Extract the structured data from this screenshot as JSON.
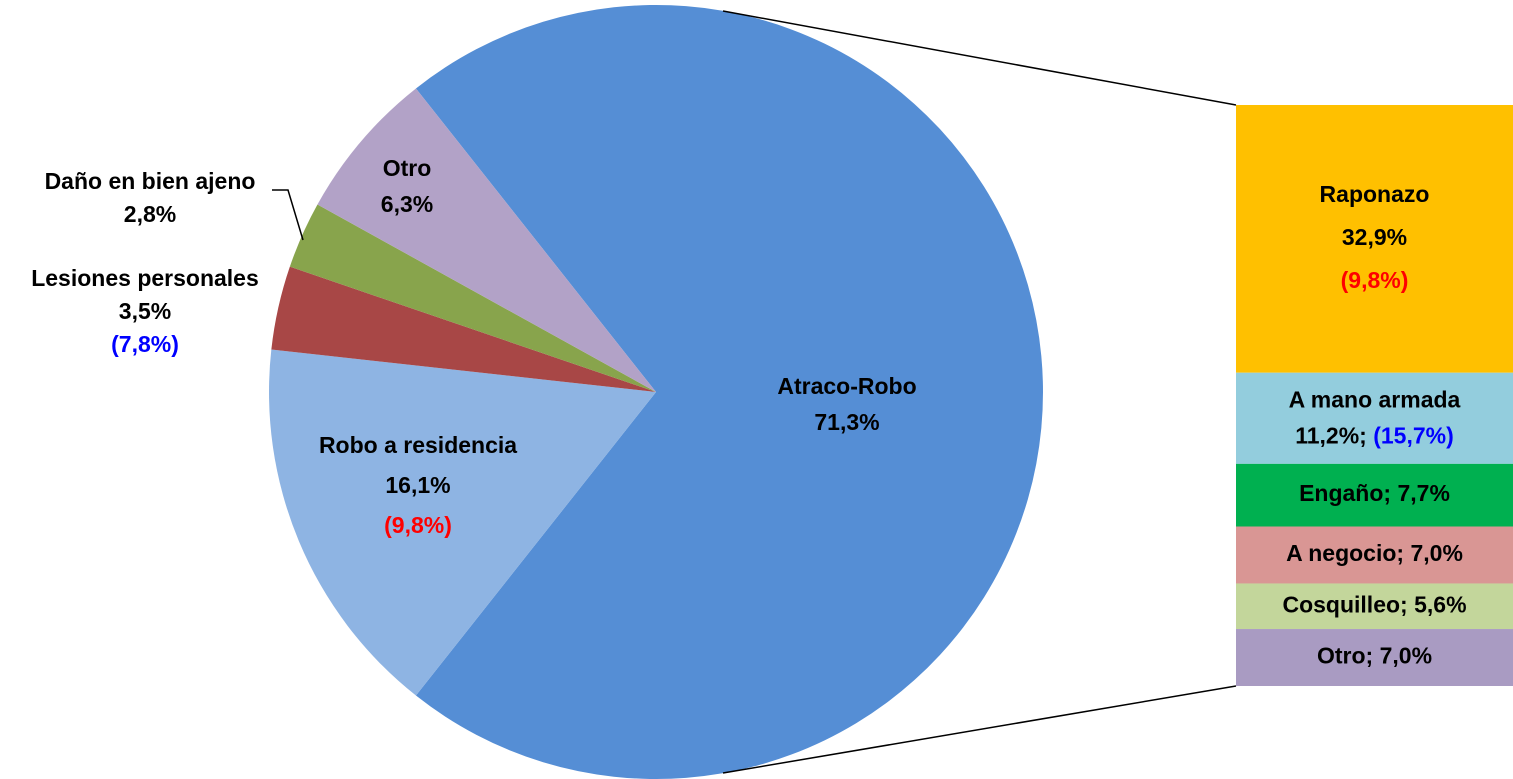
{
  "chart_data": [
    {
      "type": "pie",
      "categories": [
        "Atraco-Robo",
        "Robo a residencia",
        "Lesiones personales",
        "Daño en bien ajeno",
        "Otro"
      ],
      "values": [
        71.3,
        16.1,
        3.5,
        2.8,
        6.3
      ],
      "value_labels": [
        "71,3%",
        "16,1%",
        "3,5%",
        "2,8%",
        "6,3%"
      ],
      "colors": [
        "#558ed5",
        "#8eb4e3",
        "#a84746",
        "#88a44c",
        "#b2a2c7"
      ],
      "comparisons": [
        null,
        {
          "text": "(9,8%)",
          "color": "#ff0000"
        },
        {
          "text": "(7,8%)",
          "color": "#0000ff"
        },
        null,
        null
      ]
    },
    {
      "type": "stacked_bar",
      "categories": [
        "Raponazo",
        "A mano armada",
        "Engaño",
        "A negocio",
        "Cosquilleo",
        "Otro"
      ],
      "values": [
        32.9,
        11.2,
        7.7,
        7.0,
        5.6,
        7.0
      ],
      "value_labels": [
        "32,9%",
        "11,2%",
        "7,7%",
        "7,0%",
        "5,6%",
        "7,0%"
      ],
      "label_separator": "; ",
      "colors": [
        "#ffc000",
        "#93cddd",
        "#00b050",
        "#d99694",
        "#c3d69b",
        "#a99bc2"
      ],
      "comparisons": [
        {
          "text": "(9,8%)",
          "color": "#ff0000"
        },
        {
          "text": "(15,7%)",
          "color": "#0000ff"
        },
        null,
        null,
        null,
        null
      ]
    }
  ]
}
